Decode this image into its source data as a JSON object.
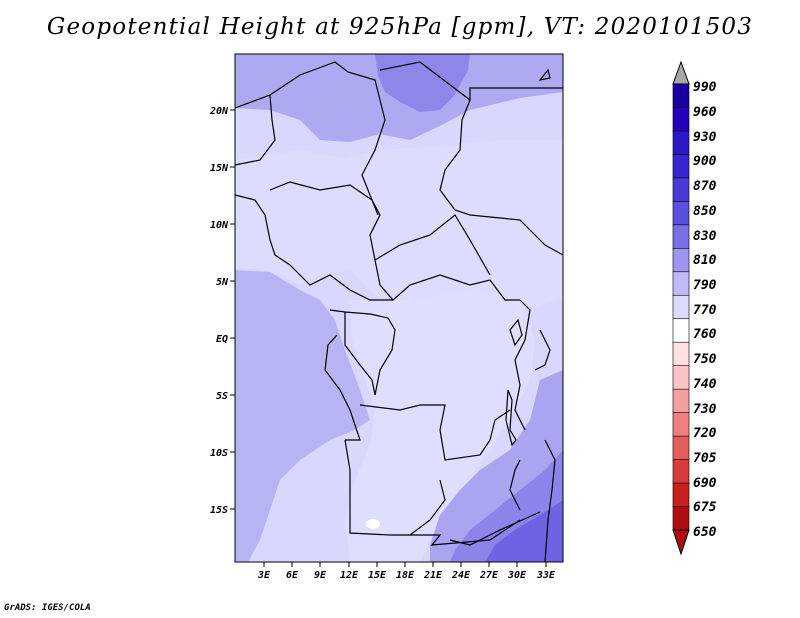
{
  "title": "Geopotential Height at 925hPa [gpm], VT: 2020101503",
  "credit": "GrADS: IGES/COLA",
  "map": {
    "lat_labels": [
      "20N",
      "15N",
      "10N",
      "5N",
      "EQ",
      "5S",
      "10S",
      "15S"
    ],
    "lon_labels": [
      "3E",
      "6E",
      "9E",
      "12E",
      "15E",
      "18E",
      "21E",
      "24E",
      "27E",
      "30E",
      "33E"
    ],
    "background_color": "#d8d8ff"
  },
  "colorbar": {
    "levels": [
      "990",
      "960",
      "930",
      "900",
      "870",
      "850",
      "830",
      "810",
      "790",
      "770",
      "760",
      "750",
      "740",
      "730",
      "720",
      "705",
      "690",
      "675",
      "650"
    ],
    "colors": [
      "#1a009f",
      "#2400b8",
      "#2b17c8",
      "#3826d1",
      "#4a3bd8",
      "#5b50dd",
      "#7a70e6",
      "#9d97ef",
      "#bebcf6",
      "#dcdcff",
      "#ffffff",
      "#ffe1e1",
      "#fcc4c4",
      "#f5a0a0",
      "#ee8080",
      "#e45c5c",
      "#d93c3c",
      "#c92020",
      "#b00e0e"
    ],
    "top_arrow_color": "#a8a8a8",
    "bottom_arrow_color": "#b00e0e"
  }
}
